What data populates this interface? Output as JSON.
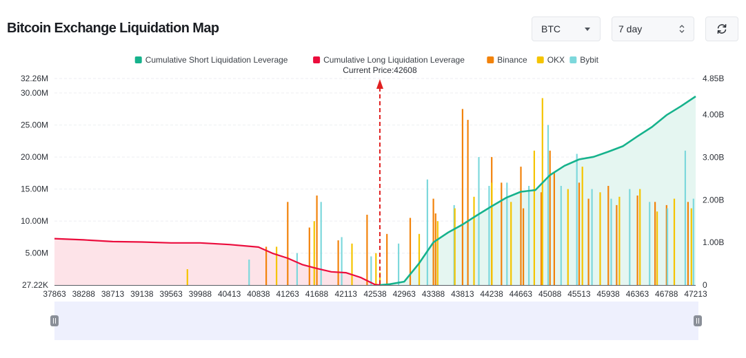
{
  "header": {
    "title": "Bitcoin Exchange Liquidation Map",
    "symbol": "BTC",
    "range": "7 day",
    "refresh_icon": "refresh-icon"
  },
  "colors": {
    "short": "#16b28c",
    "short_fill": "#e5f6f1",
    "long": "#eb0c3c",
    "long_fill": "#fde3e8",
    "binance": "#f2820a",
    "okx": "#f5c400",
    "bybit": "#7dd8dc",
    "marker": "#e02020"
  },
  "chart_data": {
    "type": "bar",
    "title": "Bitcoin Exchange Liquidation Map",
    "annotation": "Current Price:42608",
    "current_price": 42608,
    "legend_position": "top-center",
    "legend": [
      {
        "name": "Cumulative Short Liquidation Leverage",
        "color": "#16b28c"
      },
      {
        "name": "Cumulative Long Liquidation Leverage",
        "color": "#eb0c3c"
      },
      {
        "name": "Binance",
        "color": "#f2820a"
      },
      {
        "name": "OKX",
        "color": "#f5c400"
      },
      {
        "name": "Bybit",
        "color": "#7dd8dc"
      }
    ],
    "x_ticks": [
      "37863",
      "38288",
      "38713",
      "39138",
      "39563",
      "39988",
      "40413",
      "40838",
      "41263",
      "41688",
      "42113",
      "42538",
      "42963",
      "43388",
      "43813",
      "44238",
      "44663",
      "45088",
      "45513",
      "45938",
      "46363",
      "46788",
      "47213"
    ],
    "xlim": [
      37863,
      47213
    ],
    "y_left": {
      "range": [
        27220,
        32260000
      ],
      "ticks": [
        {
          "v": 27220,
          "label": "27.22K"
        },
        {
          "v": 5000000,
          "label": "5.00M"
        },
        {
          "v": 10000000,
          "label": "10.00M"
        },
        {
          "v": 15000000,
          "label": "15.00M"
        },
        {
          "v": 20000000,
          "label": "20.00M"
        },
        {
          "v": 25000000,
          "label": "25.00M"
        },
        {
          "v": 30000000,
          "label": "30.00M"
        },
        {
          "v": 32260000,
          "label": "32.26M"
        }
      ]
    },
    "y_right": {
      "range": [
        0,
        4850000000
      ],
      "ticks": [
        {
          "v": 0,
          "label": "0"
        },
        {
          "v": 1000000000,
          "label": "1.00B"
        },
        {
          "v": 2000000000,
          "label": "2.00B"
        },
        {
          "v": 3000000000,
          "label": "3.00B"
        },
        {
          "v": 4000000000,
          "label": "4.00B"
        },
        {
          "v": 4850000000,
          "label": "4.85B"
        }
      ]
    },
    "series": [
      {
        "name": "Cumulative Long Liquidation Leverage",
        "axis": "right",
        "x": [
          37863,
          38288,
          38713,
          39138,
          39563,
          39988,
          40413,
          40838,
          41050,
          41263,
          41475,
          41688,
          41900,
          42113,
          42325,
          42538,
          42608
        ],
        "values": [
          1090000000,
          1060000000,
          1020000000,
          1010000000,
          990000000,
          990000000,
          950000000,
          890000000,
          740000000,
          630000000,
          480000000,
          390000000,
          310000000,
          290000000,
          180000000,
          10000000,
          0
        ]
      },
      {
        "name": "Cumulative Short Liquidation Leverage",
        "axis": "right",
        "x": [
          42608,
          42750,
          42963,
          43175,
          43388,
          43600,
          43813,
          44025,
          44238,
          44450,
          44663,
          44875,
          45088,
          45300,
          45513,
          45725,
          45938,
          46150,
          46363,
          46575,
          46788,
          47000,
          47213
        ],
        "values": [
          0,
          20000000,
          80000000,
          500000000,
          1000000000,
          1230000000,
          1420000000,
          1640000000,
          1850000000,
          2050000000,
          2190000000,
          2230000000,
          2580000000,
          2800000000,
          2950000000,
          3010000000,
          3130000000,
          3260000000,
          3490000000,
          3710000000,
          3990000000,
          4200000000,
          4430000000
        ]
      },
      {
        "name": "Binance",
        "axis": "left",
        "x": [
          40950,
          41263,
          41580,
          41688,
          42000,
          42420,
          42710,
          43050,
          43388,
          43420,
          43813,
          43890,
          44238,
          44380,
          44663,
          44700,
          44960,
          45088,
          45150,
          45513,
          45650,
          45938,
          46060,
          46363,
          46620,
          46788,
          47100
        ],
        "values": [
          6000000,
          13000000,
          9000000,
          14000000,
          7000000,
          11000000,
          8000000,
          10500000,
          13500000,
          11200000,
          27500000,
          25800000,
          20000000,
          16000000,
          18500000,
          12000000,
          14500000,
          21000000,
          17500000,
          16000000,
          13500000,
          15500000,
          12500000,
          14000000,
          13000000,
          12500000,
          13000000
        ]
      },
      {
        "name": "OKX",
        "axis": "left",
        "x": [
          39800,
          41100,
          41650,
          42200,
          42550,
          42608,
          43180,
          43450,
          43700,
          43980,
          44240,
          44520,
          44858,
          44978,
          45350,
          45560,
          45820,
          46100,
          46400,
          46650,
          46900,
          47150
        ],
        "values": [
          2500000,
          6000000,
          10000000,
          6500000,
          5000000,
          2000000,
          8000000,
          10000000,
          12000000,
          13800000,
          16000000,
          13000000,
          21000000,
          29200000,
          15000000,
          18500000,
          14500000,
          13800000,
          15000000,
          11500000,
          13500000,
          12000000
        ]
      },
      {
        "name": "Bybit",
        "axis": "left",
        "x": [
          40700,
          41400,
          41750,
          42050,
          42480,
          42880,
          43300,
          43690,
          44050,
          44200,
          44460,
          44780,
          45060,
          45250,
          45480,
          45700,
          45980,
          46250,
          46540,
          46800,
          47060,
          47180
        ],
        "values": [
          4000000,
          5000000,
          13000000,
          7500000,
          4500000,
          6500000,
          16500000,
          12500000,
          20000000,
          15500000,
          16000000,
          15500000,
          25000000,
          15500000,
          20500000,
          15000000,
          13500000,
          15000000,
          13000000,
          12000000,
          21000000,
          13500000
        ]
      }
    ]
  }
}
